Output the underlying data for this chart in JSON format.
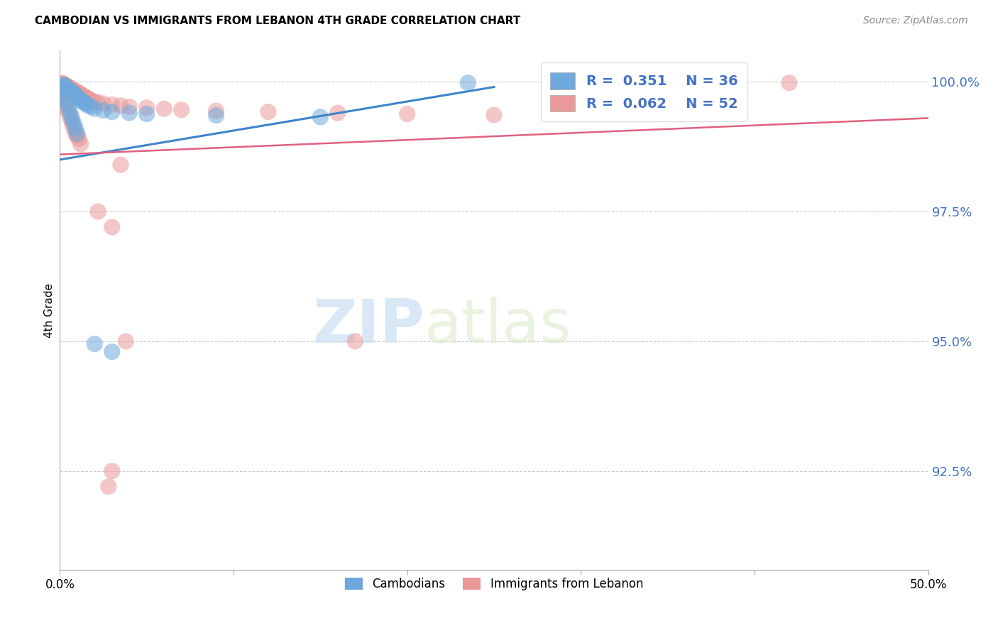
{
  "title": "CAMBODIAN VS IMMIGRANTS FROM LEBANON 4TH GRADE CORRELATION CHART",
  "source": "Source: ZipAtlas.com",
  "ylabel": "4th Grade",
  "ytick_labels": [
    "100.0%",
    "97.5%",
    "95.0%",
    "92.5%"
  ],
  "ytick_values": [
    1.0,
    0.975,
    0.95,
    0.925
  ],
  "xlim": [
    0.0,
    0.5
  ],
  "ylim": [
    0.906,
    1.006
  ],
  "legend_blue_r": "R =  0.351",
  "legend_blue_n": "N = 36",
  "legend_pink_r": "R =  0.062",
  "legend_pink_n": "N = 52",
  "blue_color": "#6fa8dc",
  "pink_color": "#ea9999",
  "blue_line_color": "#3d85c8",
  "pink_line_color": "#e06080",
  "blue_line_x": [
    0.0,
    0.25
  ],
  "blue_line_y": [
    0.985,
    0.999
  ],
  "pink_line_x": [
    0.0,
    0.5
  ],
  "pink_line_y": [
    0.986,
    0.993
  ],
  "cam_x": [
    0.001,
    0.002,
    0.002,
    0.003,
    0.003,
    0.004,
    0.004,
    0.005,
    0.005,
    0.006,
    0.006,
    0.007,
    0.007,
    0.008,
    0.008,
    0.009,
    0.009,
    0.01,
    0.01,
    0.011,
    0.012,
    0.013,
    0.014,
    0.015,
    0.016,
    0.018,
    0.02,
    0.025,
    0.03,
    0.04,
    0.05,
    0.09,
    0.15,
    0.235,
    0.02,
    0.03
  ],
  "cam_y": [
    0.999,
    0.9995,
    0.998,
    0.9992,
    0.997,
    0.9988,
    0.996,
    0.9985,
    0.995,
    0.9983,
    0.994,
    0.998,
    0.993,
    0.9978,
    0.992,
    0.9975,
    0.991,
    0.997,
    0.99,
    0.9968,
    0.9965,
    0.9962,
    0.996,
    0.9958,
    0.9955,
    0.9952,
    0.9948,
    0.9945,
    0.9942,
    0.994,
    0.9938,
    0.9935,
    0.9932,
    0.9998,
    0.9495,
    0.948
  ],
  "leb_x": [
    0.001,
    0.001,
    0.002,
    0.002,
    0.003,
    0.003,
    0.004,
    0.004,
    0.005,
    0.005,
    0.006,
    0.006,
    0.007,
    0.007,
    0.008,
    0.008,
    0.009,
    0.009,
    0.01,
    0.01,
    0.011,
    0.011,
    0.012,
    0.012,
    0.013,
    0.014,
    0.015,
    0.016,
    0.017,
    0.018,
    0.02,
    0.022,
    0.025,
    0.03,
    0.035,
    0.04,
    0.05,
    0.06,
    0.07,
    0.09,
    0.12,
    0.16,
    0.2,
    0.25,
    0.42,
    0.022,
    0.03,
    0.038,
    0.17,
    0.035,
    0.03,
    0.028
  ],
  "leb_y": [
    0.9998,
    0.998,
    0.9996,
    0.997,
    0.9994,
    0.996,
    0.9992,
    0.995,
    0.999,
    0.994,
    0.9988,
    0.993,
    0.9986,
    0.992,
    0.9984,
    0.991,
    0.9982,
    0.99,
    0.998,
    0.9895,
    0.9978,
    0.989,
    0.9976,
    0.988,
    0.9974,
    0.9972,
    0.997,
    0.9968,
    0.9966,
    0.9964,
    0.9962,
    0.996,
    0.9958,
    0.9956,
    0.9954,
    0.9952,
    0.995,
    0.9948,
    0.9946,
    0.9944,
    0.9942,
    0.994,
    0.9938,
    0.9936,
    0.9998,
    0.975,
    0.972,
    0.95,
    0.95,
    0.984,
    0.925,
    0.922
  ]
}
